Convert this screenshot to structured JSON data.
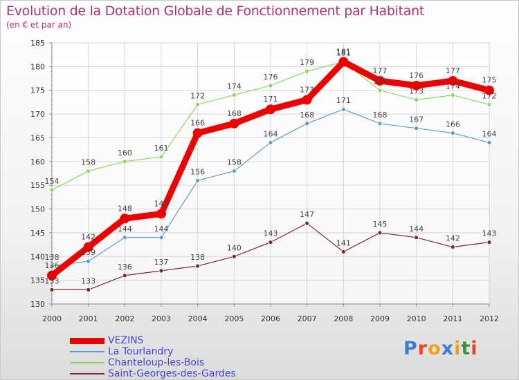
{
  "title": "Evolution de la Dotation Globale de Fonctionnement par Habitant",
  "subtitle": "(en € et par an)",
  "brand": {
    "text": "Proxiti",
    "letter_colors": [
      "#3a7fd5",
      "#e8442a",
      "#f0a020",
      "#3a7fd5",
      "#f0a020",
      "#2a9d3a",
      "#e8442a"
    ]
  },
  "chart_data": {
    "type": "line",
    "title": "Evolution de la Dotation Globale de Fonctionnement par Habitant",
    "subtitle": "(en € et par an)",
    "x": [
      "2000",
      "2001",
      "2002",
      "2003",
      "2004",
      "2005",
      "2006",
      "2007",
      "2008",
      "2009",
      "2010",
      "2011",
      "2012"
    ],
    "ylim": [
      130,
      185
    ],
    "yticks": [
      "130",
      "135",
      "140",
      "145",
      "150",
      "155",
      "160",
      "165",
      "170",
      "175",
      "180",
      "185"
    ],
    "grid": true,
    "legend_position": "bottom-left",
    "series": [
      {
        "name": "VEZINS",
        "color": "#ee0000",
        "values": [
          136,
          142,
          148,
          149,
          166,
          168,
          171,
          173,
          181,
          177,
          176,
          177,
          175
        ]
      },
      {
        "name": "La Tourlandry",
        "color": "#5a9bd0",
        "values": [
          138,
          139,
          144,
          144,
          156,
          158,
          164,
          168,
          171,
          168,
          167,
          166,
          164
        ]
      },
      {
        "name": "Chanteloup-les-Bois",
        "color": "#88d860",
        "values": [
          154,
          158,
          160,
          161,
          172,
          174,
          176,
          179,
          181,
          175,
          173,
          174,
          172
        ]
      },
      {
        "name": "Saint-Georges-des-Gardes",
        "color": "#7a2a2a",
        "values": [
          133,
          133,
          136,
          137,
          138,
          140,
          143,
          147,
          141,
          145,
          144,
          142,
          143
        ]
      }
    ]
  }
}
